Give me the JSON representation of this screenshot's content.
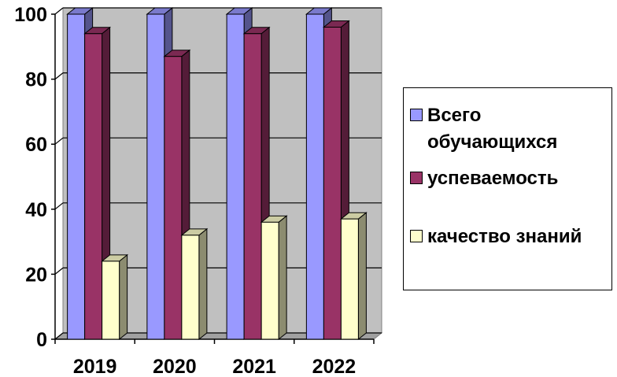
{
  "chart_data": {
    "type": "bar",
    "categories": [
      "2019",
      "2020",
      "2021",
      "2022"
    ],
    "series": [
      {
        "name": "Всего обучающихся",
        "values": [
          100,
          100,
          100,
          100
        ],
        "color": "#9999ff"
      },
      {
        "name": "успеваемость",
        "values": [
          94,
          87,
          94,
          96
        ],
        "color": "#993366"
      },
      {
        "name": "качество знаний",
        "values": [
          24,
          32,
          36,
          37
        ],
        "color": "#ffffcc"
      }
    ],
    "ylim": [
      0,
      100
    ],
    "yticks": [
      "0",
      "20",
      "40",
      "60",
      "80",
      "100"
    ],
    "title": "",
    "xlabel": "",
    "ylabel": "",
    "grid": true,
    "plot_background": "#c0c0c0",
    "legend_position": "right"
  },
  "legend": {
    "items": [
      {
        "label": "Всего\nобучающихся",
        "color": "#9999ff"
      },
      {
        "label": "успеваемость",
        "color": "#993366"
      },
      {
        "label": "качество знаний",
        "color": "#ffffcc"
      }
    ]
  }
}
